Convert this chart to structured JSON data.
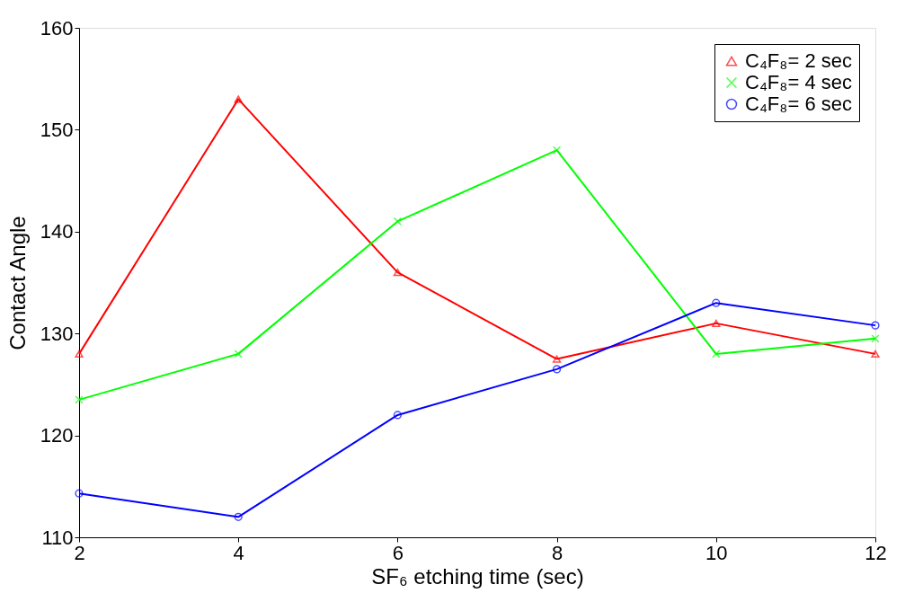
{
  "chart_data": {
    "type": "line",
    "xlabel": "SF₆ etching time (sec)",
    "ylabel": "Contact Angle",
    "x": [
      2,
      4,
      6,
      8,
      10,
      12
    ],
    "series": [
      {
        "name": "C₄F₈= 2 sec",
        "color": "#ff0000",
        "marker": "triangle",
        "values": [
          128,
          153,
          136,
          127.5,
          131,
          128
        ]
      },
      {
        "name": "C₄F₈= 4 sec",
        "color": "#00ff00",
        "marker": "cross",
        "values": [
          123.5,
          128,
          141,
          148,
          128,
          129.5
        ]
      },
      {
        "name": "C₄F₈= 6 sec",
        "color": "#0000ff",
        "marker": "circle",
        "values": [
          114.3,
          112,
          122,
          126.5,
          133,
          130.8
        ]
      }
    ],
    "xlim": [
      2,
      12
    ],
    "xticks": [
      2,
      4,
      6,
      8,
      10,
      12
    ],
    "ylim": [
      110,
      160
    ],
    "yticks": [
      110,
      120,
      130,
      140,
      150,
      160
    ],
    "grid": false,
    "legend": "top right",
    "line_style": "solid"
  }
}
